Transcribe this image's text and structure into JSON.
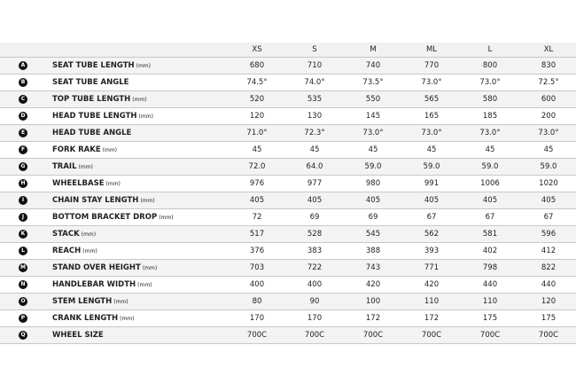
{
  "sizes": [
    "XS",
    "S",
    "M",
    "ML",
    "L",
    "XL"
  ],
  "rows": [
    {
      "letter": "A",
      "label": "SEAT TUBE LENGTH",
      "unit": "(mm)",
      "values": [
        "680",
        "710",
        "740",
        "770",
        "800",
        "830"
      ]
    },
    {
      "letter": "B",
      "label": "SEAT TUBE ANGLE",
      "unit": "",
      "values": [
        "74.5°",
        "74.0°",
        "73.5°",
        "73.0°",
        "73.0°",
        "72.5°"
      ]
    },
    {
      "letter": "C",
      "label": "TOP TUBE LENGTH",
      "unit": "(mm)",
      "values": [
        "520",
        "535",
        "550",
        "565",
        "580",
        "600"
      ]
    },
    {
      "letter": "D",
      "label": "HEAD TUBE LENGTH",
      "unit": "(mm)",
      "values": [
        "120",
        "130",
        "145",
        "165",
        "185",
        "200"
      ]
    },
    {
      "letter": "E",
      "label": "HEAD TUBE ANGLE",
      "unit": "",
      "values": [
        "71.0°",
        "72.3°",
        "73.0°",
        "73.0°",
        "73.0°",
        "73.0°"
      ]
    },
    {
      "letter": "F",
      "label": "FORK RAKE",
      "unit": "(mm)",
      "values": [
        "45",
        "45",
        "45",
        "45",
        "45",
        "45"
      ]
    },
    {
      "letter": "G",
      "label": "TRAIL",
      "unit": "(mm)",
      "values": [
        "72.0",
        "64.0",
        "59.0",
        "59.0",
        "59.0",
        "59.0"
      ]
    },
    {
      "letter": "H",
      "label": "WHEELBASE",
      "unit": "(mm)",
      "values": [
        "976",
        "977",
        "980",
        "991",
        "1006",
        "1020"
      ]
    },
    {
      "letter": "I",
      "label": "CHAIN STAY LENGTH",
      "unit": "(mm)",
      "values": [
        "405",
        "405",
        "405",
        "405",
        "405",
        "405"
      ]
    },
    {
      "letter": "J",
      "label": "BOTTOM BRACKET DROP",
      "unit": "(mm)",
      "values": [
        "72",
        "69",
        "69",
        "67",
        "67",
        "67"
      ]
    },
    {
      "letter": "K",
      "label": "STACK",
      "unit": "(mm)",
      "values": [
        "517",
        "528",
        "545",
        "562",
        "581",
        "596"
      ]
    },
    {
      "letter": "L",
      "label": "REACH",
      "unit": "(mm)",
      "values": [
        "376",
        "383",
        "388",
        "393",
        "402",
        "412"
      ]
    },
    {
      "letter": "M",
      "label": "STAND OVER HEIGHT",
      "unit": "(mm)",
      "values": [
        "703",
        "722",
        "743",
        "771",
        "798",
        "822"
      ]
    },
    {
      "letter": "N",
      "label": "HANDLEBAR WIDTH",
      "unit": "(mm)",
      "values": [
        "400",
        "400",
        "420",
        "420",
        "440",
        "440"
      ]
    },
    {
      "letter": "O",
      "label": "STEM LENGTH",
      "unit": "(mm)",
      "values": [
        "80",
        "90",
        "100",
        "110",
        "110",
        "120"
      ]
    },
    {
      "letter": "P",
      "label": "CRANK LENGTH",
      "unit": "(mm)",
      "values": [
        "170",
        "170",
        "172",
        "172",
        "175",
        "175"
      ]
    },
    {
      "letter": "Q",
      "label": "WHEEL SIZE",
      "unit": "",
      "values": [
        "700C",
        "700C",
        "700C",
        "700C",
        "700C",
        "700C"
      ]
    }
  ]
}
